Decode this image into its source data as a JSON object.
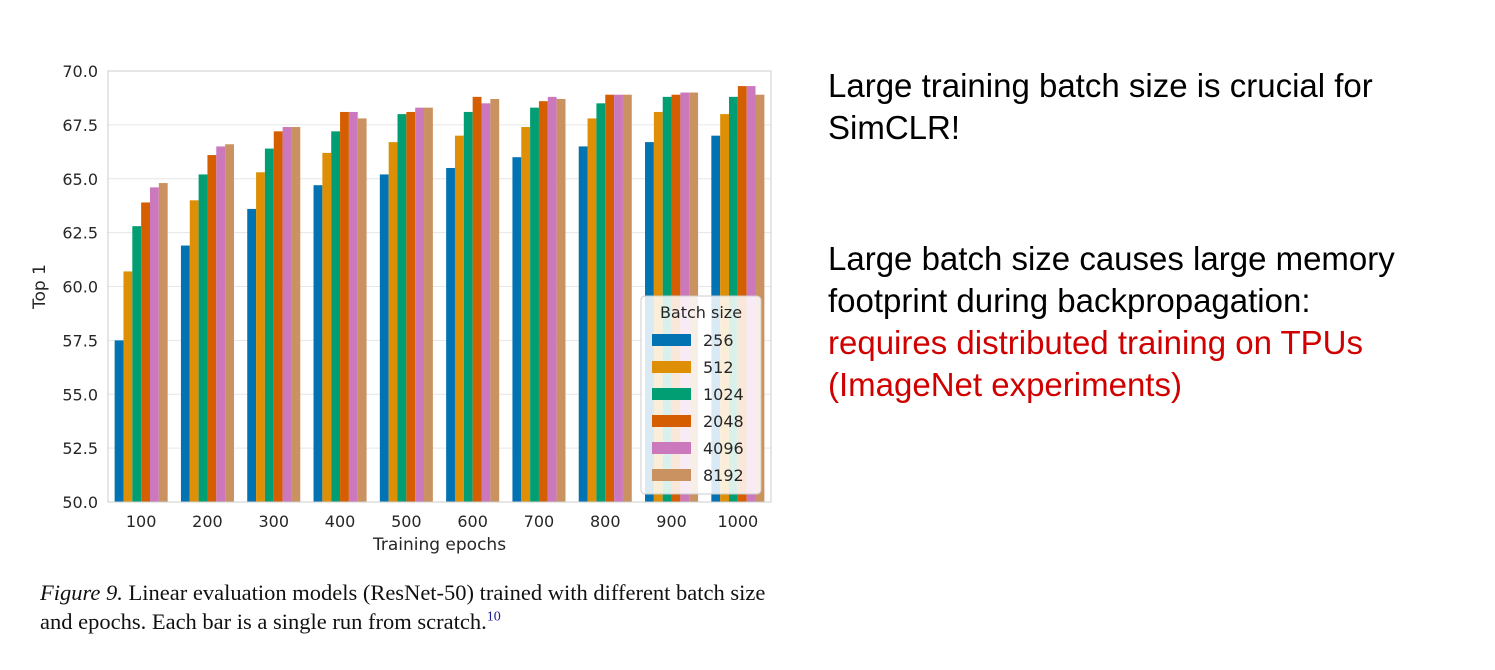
{
  "chart_data": {
    "type": "bar",
    "xlabel": "Training epochs",
    "ylabel": "Top 1",
    "ylim": [
      50.0,
      70.0
    ],
    "yticks": [
      "50.0",
      "52.5",
      "55.0",
      "57.5",
      "60.0",
      "62.5",
      "65.0",
      "67.5",
      "70.0"
    ],
    "categories": [
      "100",
      "200",
      "300",
      "400",
      "500",
      "600",
      "700",
      "800",
      "900",
      "1000"
    ],
    "grid": "horizontal",
    "legend": {
      "title": "Batch size",
      "placement": "lower-right"
    },
    "series": [
      {
        "name": "256",
        "color": "#0173b2",
        "values": [
          57.5,
          61.9,
          63.6,
          64.7,
          65.2,
          65.5,
          66.0,
          66.5,
          66.7,
          67.0
        ]
      },
      {
        "name": "512",
        "color": "#de8f05",
        "values": [
          60.7,
          64.0,
          65.3,
          66.2,
          66.7,
          67.0,
          67.4,
          67.8,
          68.1,
          68.0
        ]
      },
      {
        "name": "1024",
        "color": "#029e73",
        "values": [
          62.8,
          65.2,
          66.4,
          67.2,
          68.0,
          68.1,
          68.3,
          68.5,
          68.8,
          68.8
        ]
      },
      {
        "name": "2048",
        "color": "#d55e00",
        "values": [
          63.9,
          66.1,
          67.2,
          68.1,
          68.1,
          68.8,
          68.6,
          68.9,
          68.9,
          69.3
        ]
      },
      {
        "name": "4096",
        "color": "#cc78bc",
        "values": [
          64.6,
          66.5,
          67.4,
          68.1,
          68.3,
          68.5,
          68.8,
          68.9,
          69.0,
          69.3
        ]
      },
      {
        "name": "8192",
        "color": "#ca9161",
        "values": [
          64.8,
          66.6,
          67.4,
          67.8,
          68.3,
          68.7,
          68.7,
          68.9,
          69.0,
          68.9
        ]
      }
    ]
  },
  "caption": {
    "label": "Figure 9.",
    "text": "Linear evaluation models (ResNet-50) trained with different batch size and epochs. Each bar is a single run from scratch.",
    "footnote": "10"
  },
  "side": {
    "p1": "Large training batch size is crucial for SimCLR!",
    "p2": "Large batch size causes large memory footprint during backpropagation:",
    "p2_red": "requires distributed training on TPUs (ImageNet experiments)"
  }
}
